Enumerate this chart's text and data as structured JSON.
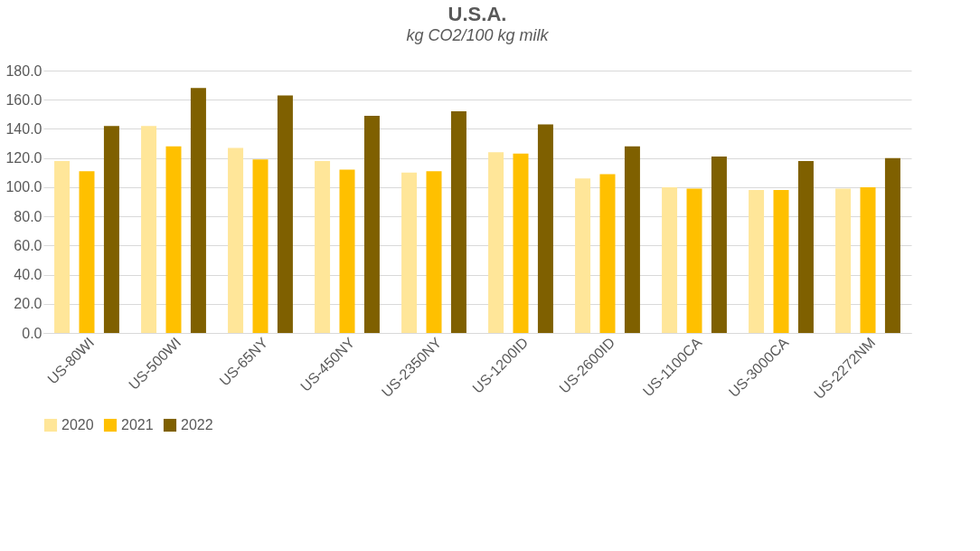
{
  "chart_data": {
    "type": "bar",
    "title": "U.S.A.",
    "subtitle": "kg CO2/100 kg milk",
    "categories": [
      "US-80WI",
      "US-500WI",
      "US-65NY",
      "US-450NY",
      "US-2350NY",
      "US-1200ID",
      "US-2600ID",
      "US-1100CA",
      "US-3000CA",
      "US-2272NM"
    ],
    "series": [
      {
        "name": "2020",
        "color": "#ffe699",
        "values": [
          118,
          142,
          127,
          118,
          110,
          124,
          106,
          100,
          98,
          99
        ]
      },
      {
        "name": "2021",
        "color": "#ffc000",
        "values": [
          111,
          128,
          119,
          112,
          111,
          123,
          109,
          99,
          98,
          100
        ]
      },
      {
        "name": "2022",
        "color": "#7f6000",
        "values": [
          142,
          168,
          163,
          149,
          152,
          143,
          128,
          121,
          118,
          120
        ]
      }
    ],
    "ylim": [
      0,
      180
    ],
    "yticks": [
      {
        "value": 0,
        "label": "0.0"
      },
      {
        "value": 20,
        "label": "20.0"
      },
      {
        "value": 40,
        "label": "40.0"
      },
      {
        "value": 60,
        "label": "60.0"
      },
      {
        "value": 80,
        "label": "80.0"
      },
      {
        "value": 100,
        "label": "100.0"
      },
      {
        "value": 120,
        "label": "120.0"
      },
      {
        "value": 140,
        "label": "140.0"
      },
      {
        "value": 160,
        "label": "160.0"
      },
      {
        "value": 180,
        "label": "180.0"
      }
    ],
    "grid": "y",
    "legend": "bottom"
  }
}
